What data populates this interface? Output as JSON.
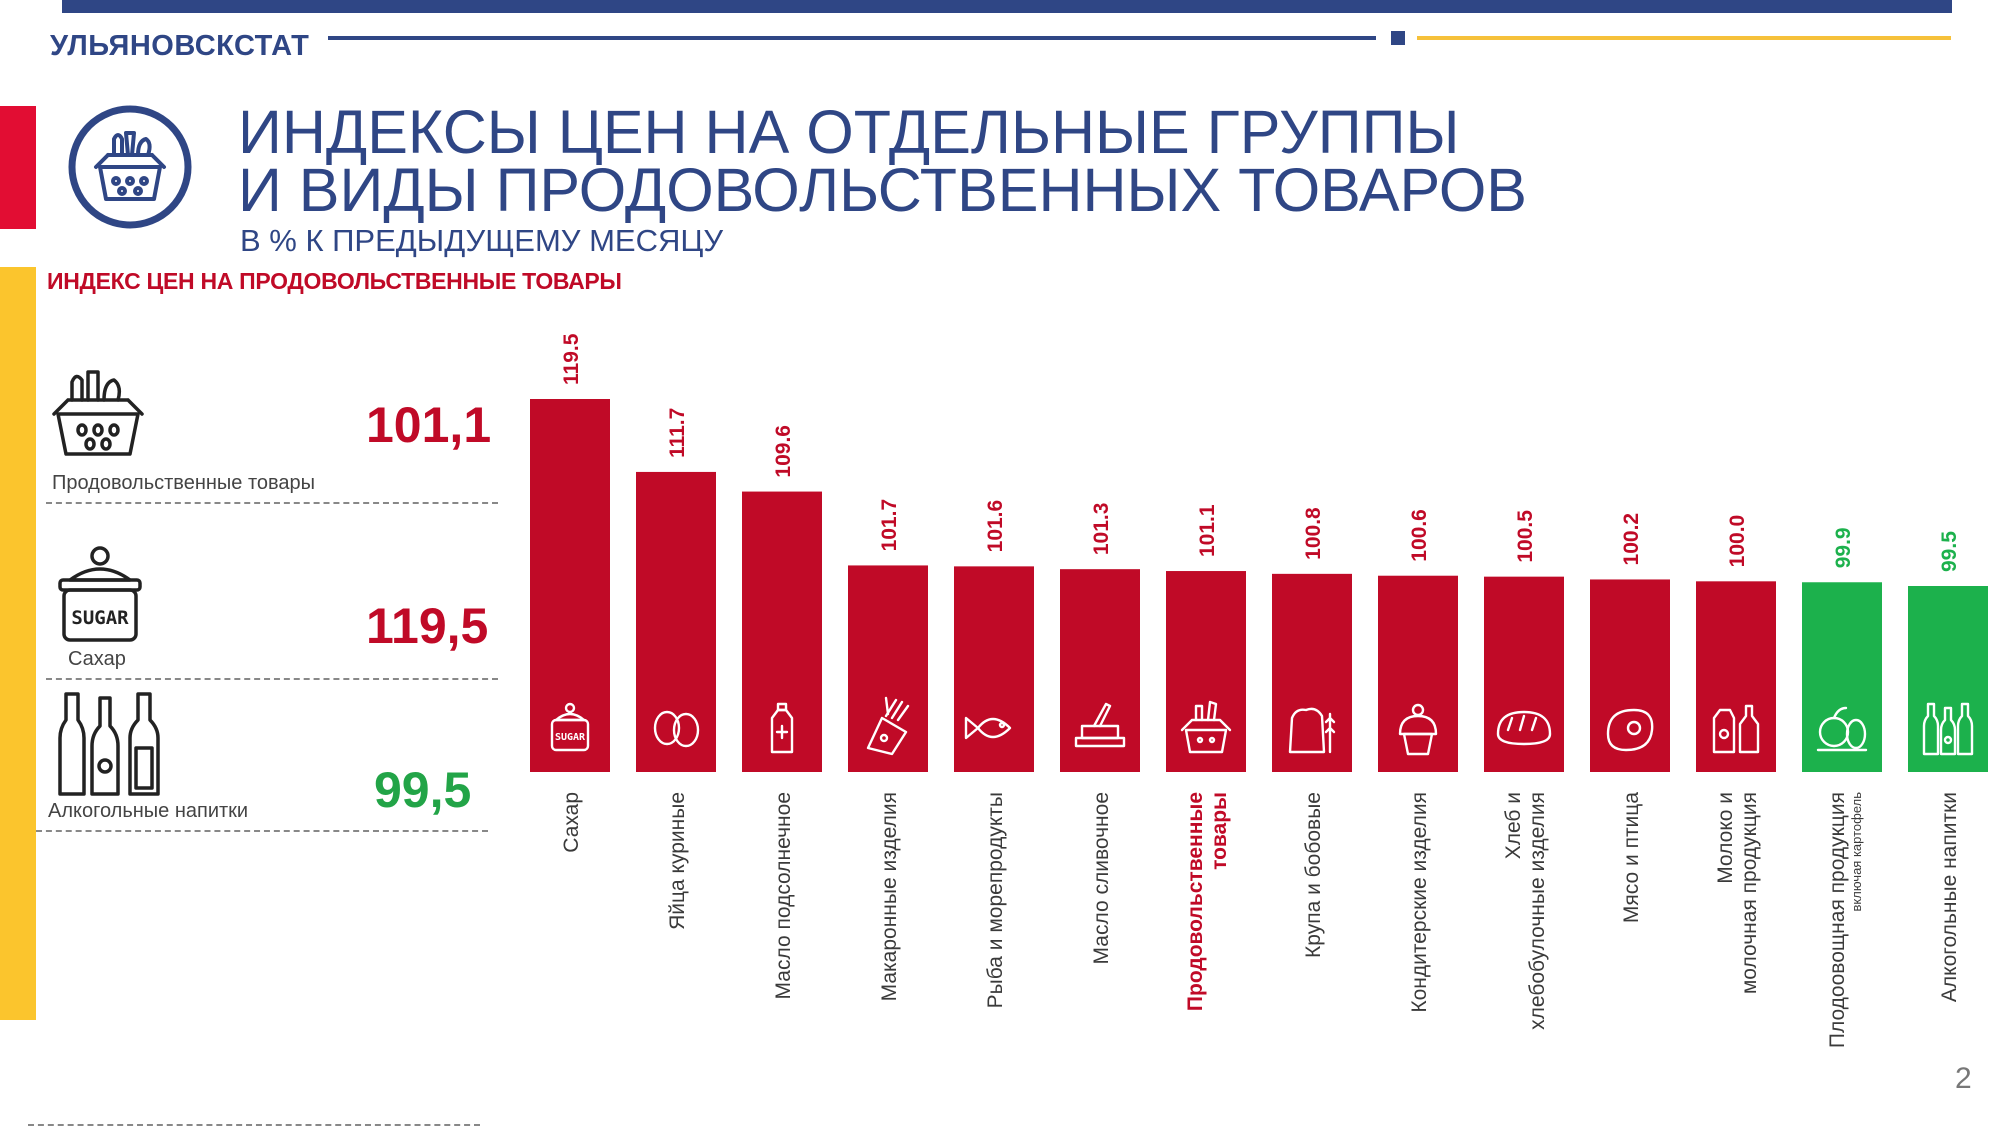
{
  "header": {
    "org": "УЛЬЯНОВСКСТАТ"
  },
  "title": {
    "line1": "ИНДЕКСЫ ЦЕН НА ОТДЕЛЬНЫЕ ГРУППЫ",
    "line2": "И ВИДЫ ПРОДОВОЛЬСТВЕННЫХ ТОВАРОВ",
    "subtitle": "В % К ПРЕДЫДУЩЕМУ МЕСЯЦУ"
  },
  "section_heading": "ИНДЕКС ЦЕН НА ПРОДОВОЛЬСТВЕННЫЕ ТОВАРЫ",
  "summary": [
    {
      "label": "Продовольственные товары",
      "value": "101,1",
      "color": "#c00a27",
      "icon": "grocery-basket-icon"
    },
    {
      "label": "Сахар",
      "value": "119,5",
      "color": "#c00a27",
      "icon": "sugar-jar-icon"
    },
    {
      "label": "Алкогольные напитки",
      "value": "99,5",
      "color": "#22a447",
      "icon": "bottles-icon"
    }
  ],
  "colors": {
    "increase": "#c00a27",
    "decrease": "#1cb14c",
    "brand": "#2f4685",
    "accent": "#fbc52d"
  },
  "chart_data": {
    "type": "bar",
    "categories": [
      "Сахар",
      "Яйца куриные",
      "Масло подсолнечное",
      "Макаронные изделия",
      "Рыба и морепродукты",
      "Масло сливочное",
      "Продовольственные товары",
      "Крупа и бобовые",
      "Кондитерские изделия",
      "Хлеб и хлебобулочные изделия",
      "Мясо и птица",
      "Молоко и молочная продукция",
      "Плодоовощная продукция",
      "Алкогольные напитки"
    ],
    "category_notes": [
      "",
      "",
      "",
      "",
      "",
      "",
      "",
      "",
      "",
      "",
      "",
      "",
      "включая картофель",
      ""
    ],
    "highlight_category": "Продовольственные товары",
    "values": [
      119.5,
      111.7,
      109.6,
      101.7,
      101.6,
      101.3,
      101.1,
      100.8,
      100.6,
      100.5,
      100.2,
      100.0,
      99.9,
      99.5
    ],
    "value_labels": [
      "119.5",
      "111.7",
      "109.6",
      "101.7",
      "101.6",
      "101.3",
      "101.1",
      "100.8",
      "100.6",
      "100.5",
      "100.2",
      "100.0",
      "99.9",
      "99.5"
    ],
    "icons": [
      "sugar-jar-icon",
      "eggs-icon",
      "oil-bottle-icon",
      "pasta-icon",
      "fish-icon",
      "butter-icon",
      "grocery-basket-icon",
      "grain-sack-icon",
      "cupcake-icon",
      "bread-icon",
      "meat-icon",
      "dairy-icon",
      "fruit-vegetables-icon",
      "bottles-icon"
    ],
    "value_min": 99.5,
    "value_max": 119.5,
    "title": "",
    "xlabel": "",
    "ylabel": "",
    "grid": false,
    "legend": "none"
  },
  "page_number": "2"
}
